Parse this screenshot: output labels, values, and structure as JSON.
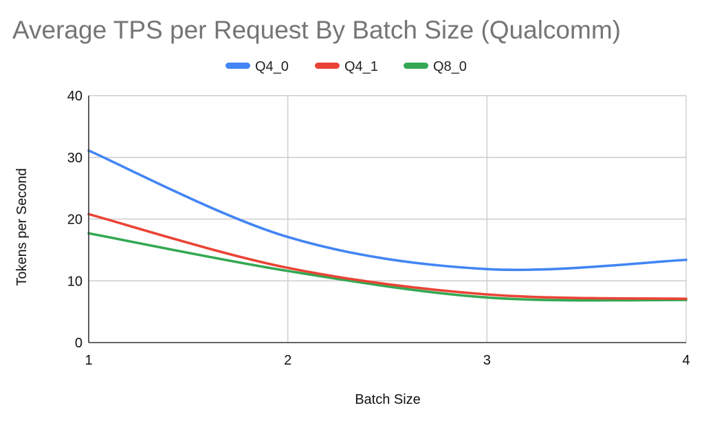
{
  "chart_data": {
    "type": "line",
    "title": "Average TPS per Request By Batch Size (Qualcomm)",
    "xlabel": "Batch Size",
    "ylabel": "Tokens per Second",
    "x": [
      1,
      2,
      3,
      4
    ],
    "xlim": [
      1,
      4
    ],
    "ylim": [
      0,
      40
    ],
    "xticks": [
      "1",
      "2",
      "3",
      "4"
    ],
    "yticks": [
      "0",
      "10",
      "20",
      "30",
      "40"
    ],
    "grid": true,
    "legend": "top",
    "smooth": true,
    "series": [
      {
        "name": "Q4_0",
        "color": "#4285f4",
        "values": [
          31.1,
          17.1,
          11.9,
          13.4
        ]
      },
      {
        "name": "Q4_1",
        "color": "#ea4335",
        "values": [
          20.8,
          12.1,
          7.8,
          7.1
        ]
      },
      {
        "name": "Q8_0",
        "color": "#34a853",
        "values": [
          17.7,
          11.6,
          7.3,
          6.9
        ]
      }
    ]
  }
}
